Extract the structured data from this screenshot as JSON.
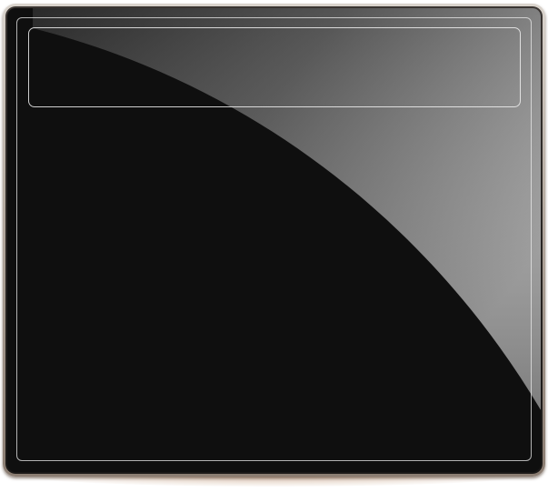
{
  "panel": {
    "title": "",
    "colors": {
      "screen": "#0f0f0f",
      "bezel_light": "#d9d3cc",
      "bezel_dark": "#8b7d72",
      "outline": "#ebebeb"
    }
  }
}
